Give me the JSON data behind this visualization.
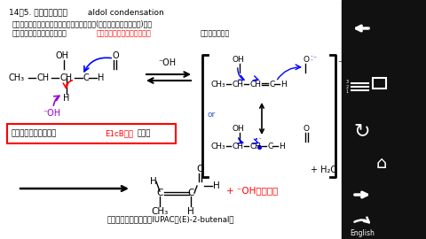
{
  "bg_color": "#ffffff",
  "right_panel_color": "#111111",
  "title_line": "14－5. アルドール縮合        aldol condensation",
  "desc_line1": "アルドール反応で生成したアルドール生成物(ヒドロキシアルデヒド)は、",
  "desc_line2a": "加熱や酸、塩基などの作用で",
  "desc_line2b": "脱水反応（結果として縮合）",
  "desc_line2c": "を起こしやすい",
  "box_a": "この形式の脱離反応を",
  "box_b": "E1cB反応",
  "box_c": "と呼ぶ",
  "bottom_label": "クロトンアルデヒド（IUPAC：(E)-2-butenal）",
  "water": "+ H₂O",
  "oh_regen": "+ ⁻OH（再生）"
}
